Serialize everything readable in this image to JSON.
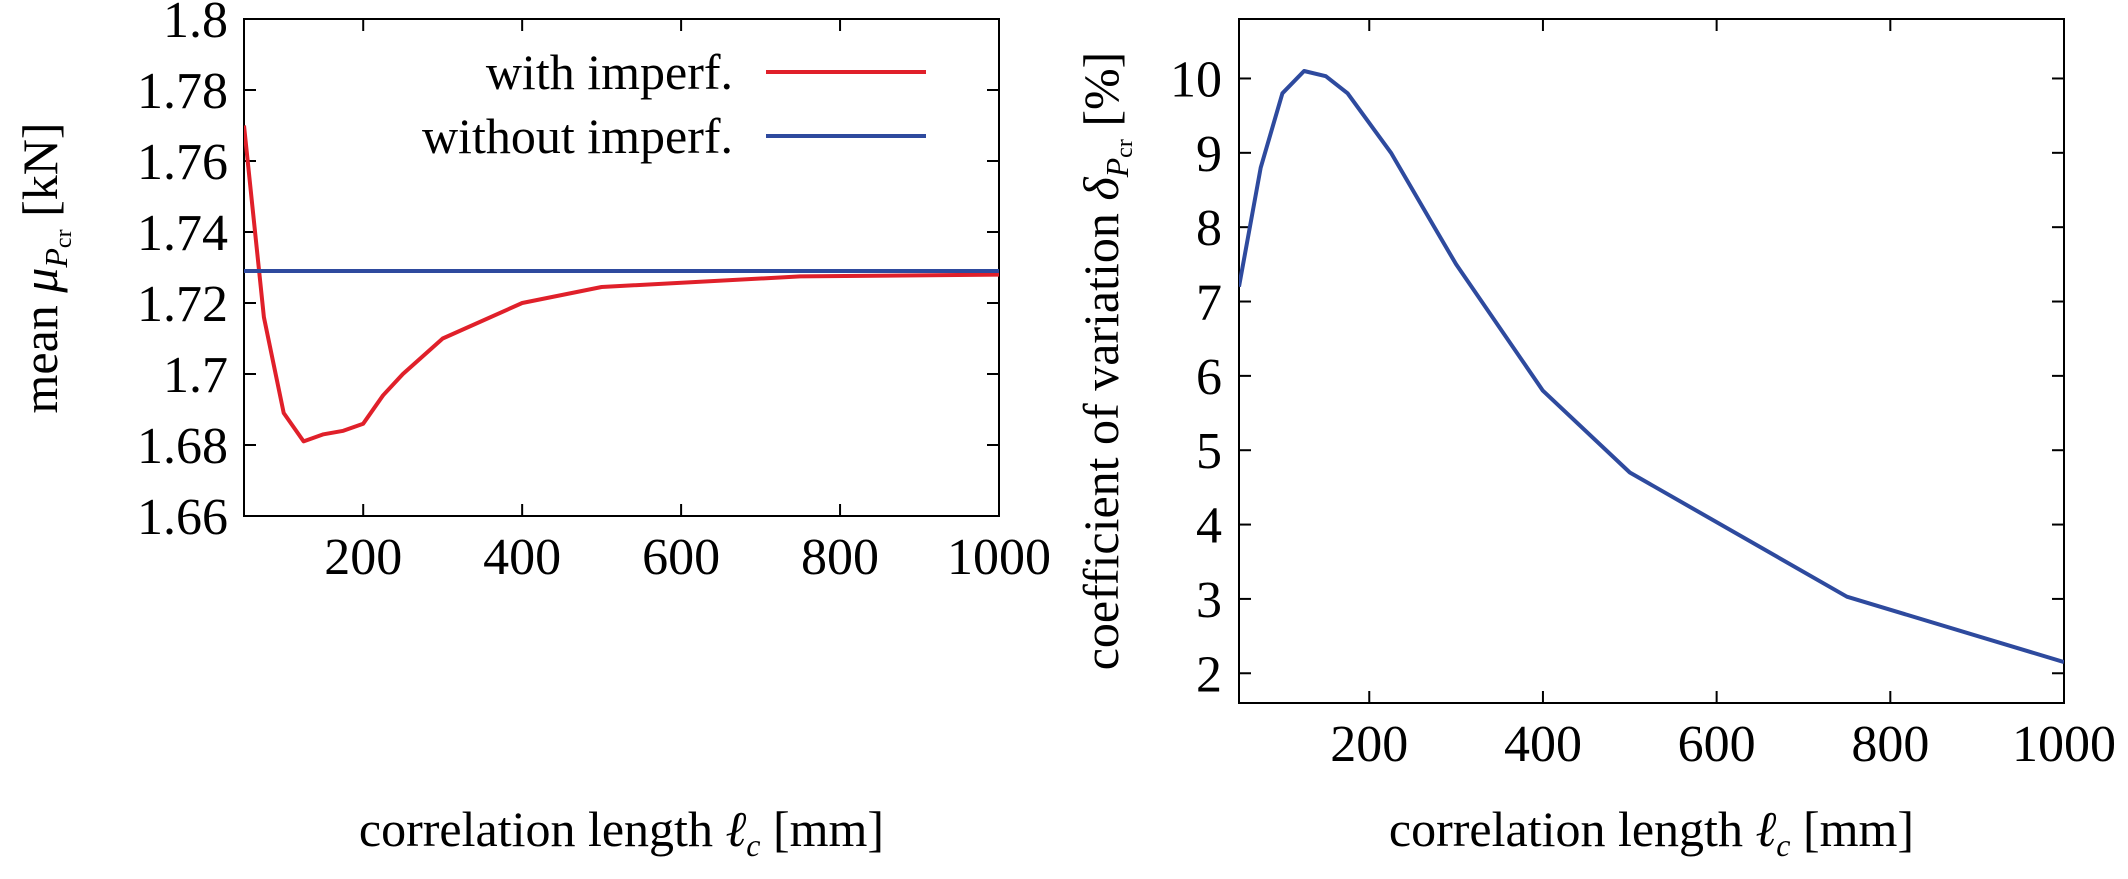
{
  "chart_data": [
    {
      "type": "line",
      "title": "",
      "xlabel": "correlation length ℓc [mm]",
      "xlabel_parts": {
        "text": "correlation length ",
        "symbol": "ℓ",
        "subscript": "c",
        "unit": "[mm]"
      },
      "ylabel": "mean μPcr [kN]",
      "ylabel_parts": {
        "text": "mean ",
        "symbol": "μ",
        "subscript": "P",
        "subsubscript": "cr",
        "unit": "[kN]"
      },
      "xlim": [
        50,
        1000
      ],
      "ylim": [
        1.66,
        1.8
      ],
      "xticks": [
        200,
        400,
        600,
        800,
        1000
      ],
      "yticks": [
        1.66,
        1.68,
        1.7,
        1.72,
        1.74,
        1.76,
        1.78,
        1.8
      ],
      "ytick_labels": [
        "1.66",
        "1.68",
        "1.7",
        "1.72",
        "1.74",
        "1.76",
        "1.78",
        "1.8"
      ],
      "legend_position": "top-right",
      "grid": false,
      "series": [
        {
          "name": "with imperf.",
          "color": "#e0202a",
          "x": [
            50,
            75,
            100,
            125,
            150,
            175,
            200,
            225,
            250,
            275,
            300,
            400,
            500,
            750,
            1000
          ],
          "y": [
            1.77,
            1.716,
            1.689,
            1.681,
            1.683,
            1.684,
            1.686,
            1.694,
            1.7,
            1.705,
            1.71,
            1.72,
            1.7245,
            1.7275,
            1.728
          ]
        },
        {
          "name": "without imperf.",
          "color": "#2e4a9e",
          "x": [
            50,
            1000
          ],
          "y": [
            1.729,
            1.729
          ]
        }
      ]
    },
    {
      "type": "line",
      "title": "",
      "xlabel": "correlation length ℓc [mm]",
      "xlabel_parts": {
        "text": "correlation length ",
        "symbol": "ℓ",
        "subscript": "c",
        "unit": "[mm]"
      },
      "ylabel": "coefficient of variation δPcr [%]",
      "ylabel_parts": {
        "text": "coefficient of variation ",
        "symbol": "δ",
        "subscript": "P",
        "subsubscript": "cr",
        "unit": "[%]"
      },
      "xlim": [
        50,
        1000
      ],
      "ylim": [
        1.6,
        10.8
      ],
      "xticks": [
        200,
        400,
        600,
        800,
        1000
      ],
      "yticks": [
        2,
        3,
        4,
        5,
        6,
        7,
        8,
        9,
        10
      ],
      "grid": false,
      "series": [
        {
          "color": "#2e4a9e",
          "x": [
            50,
            75,
            100,
            125,
            150,
            175,
            200,
            225,
            250,
            275,
            300,
            400,
            500,
            750,
            1000
          ],
          "y": [
            7.2,
            8.8,
            9.8,
            10.1,
            10.03,
            9.8,
            9.4,
            9.0,
            8.5,
            8.0,
            7.5,
            5.8,
            4.7,
            3.03,
            2.15
          ]
        }
      ]
    }
  ]
}
